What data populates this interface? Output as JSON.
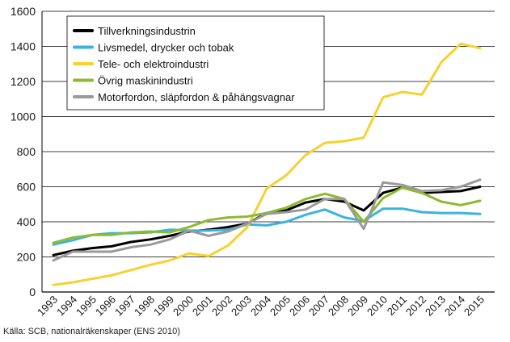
{
  "chart_data": {
    "type": "line",
    "title": "",
    "xlabel": "",
    "ylabel": "",
    "ylim": [
      0,
      1600
    ],
    "yticks": [
      0,
      200,
      400,
      600,
      800,
      1000,
      1200,
      1400,
      1600
    ],
    "grid": "horizontal",
    "legend_position": "top-left",
    "x": [
      "1993",
      "1994",
      "1995",
      "1996",
      "1997",
      "1998",
      "1999",
      "2000",
      "2001",
      "2002",
      "2003",
      "2004",
      "2005",
      "2006",
      "2007",
      "2008",
      "2009",
      "2010",
      "2011",
      "2012",
      "2013",
      "2014",
      "2015"
    ],
    "series": [
      {
        "name": "Tillverkningsindustrin",
        "color": "#000000",
        "values": [
          210,
          235,
          250,
          260,
          285,
          300,
          320,
          345,
          355,
          370,
          390,
          450,
          465,
          510,
          530,
          515,
          465,
          565,
          595,
          565,
          570,
          575,
          600
        ]
      },
      {
        "name": "Livsmedel, drycker och tobak",
        "color": "#39b3e2",
        "values": [
          270,
          295,
          325,
          335,
          335,
          340,
          355,
          350,
          350,
          355,
          385,
          380,
          400,
          440,
          470,
          425,
          405,
          475,
          475,
          455,
          450,
          450,
          445
        ]
      },
      {
        "name": "Tele- och elektroindustri",
        "color": "#f6d12f",
        "values": [
          40,
          55,
          75,
          95,
          125,
          155,
          180,
          220,
          205,
          265,
          370,
          590,
          665,
          780,
          850,
          860,
          880,
          1110,
          1140,
          1125,
          1310,
          1415,
          1390
        ]
      },
      {
        "name": "Övrig maskinindustri",
        "color": "#8dbb2e",
        "values": [
          280,
          310,
          325,
          325,
          340,
          345,
          340,
          370,
          410,
          425,
          430,
          450,
          480,
          530,
          560,
          530,
          400,
          535,
          595,
          565,
          515,
          495,
          520
        ]
      },
      {
        "name": "Motorfordon, släpfordon & påhängsvagnar",
        "color": "#9a9a9a",
        "values": [
          180,
          230,
          230,
          230,
          255,
          270,
          300,
          350,
          320,
          345,
          390,
          445,
          455,
          470,
          530,
          530,
          360,
          625,
          610,
          575,
          580,
          600,
          640
        ]
      }
    ]
  },
  "source_note": "Källa: SCB, nationalräkenskaper (ENS 2010)"
}
